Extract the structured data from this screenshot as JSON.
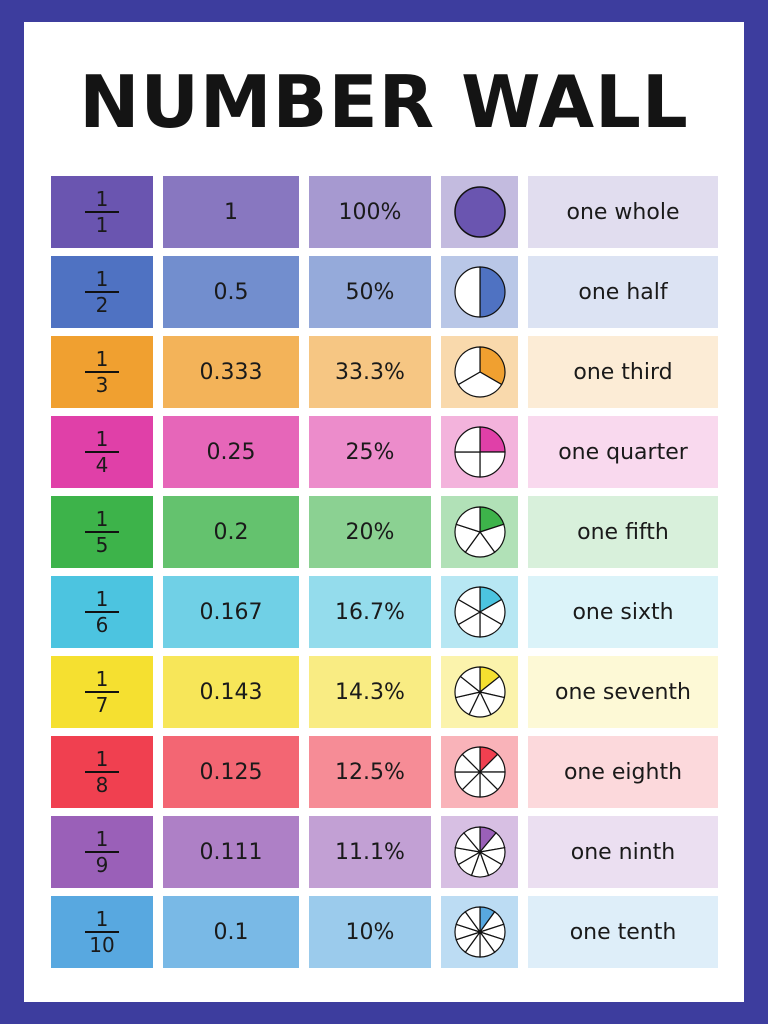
{
  "header": {
    "title": "NUMBER WALL"
  },
  "rows": [
    {
      "numerator": "1",
      "denominator": "1",
      "decimal": "1",
      "percent": "100%",
      "name": "one whole",
      "color": "#6a55b0"
    },
    {
      "numerator": "1",
      "denominator": "2",
      "decimal": "0.5",
      "percent": "50%",
      "name": "one half",
      "color": "#4f72c2"
    },
    {
      "numerator": "1",
      "denominator": "3",
      "decimal": "0.333",
      "percent": "33.3%",
      "name": "one third",
      "color": "#f0a030"
    },
    {
      "numerator": "1",
      "denominator": "4",
      "decimal": "0.25",
      "percent": "25%",
      "name": "one quarter",
      "color": "#e040a8"
    },
    {
      "numerator": "1",
      "denominator": "5",
      "decimal": "0.2",
      "percent": "20%",
      "name": "one fifth",
      "color": "#3db34a"
    },
    {
      "numerator": "1",
      "denominator": "6",
      "decimal": "0.167",
      "percent": "16.7%",
      "name": "one sixth",
      "color": "#4cc4e0"
    },
    {
      "numerator": "1",
      "denominator": "7",
      "decimal": "0.143",
      "percent": "14.3%",
      "name": "one seventh",
      "color": "#f5e030"
    },
    {
      "numerator": "1",
      "denominator": "8",
      "decimal": "0.125",
      "percent": "12.5%",
      "name": "one eighth",
      "color": "#f04050"
    },
    {
      "numerator": "1",
      "denominator": "9",
      "decimal": "0.111",
      "percent": "11.1%",
      "name": "one ninth",
      "color": "#9a60b8"
    },
    {
      "numerator": "1",
      "denominator": "10",
      "decimal": "0.1",
      "percent": "10%",
      "name": "one tenth",
      "color": "#58a8e0"
    }
  ]
}
